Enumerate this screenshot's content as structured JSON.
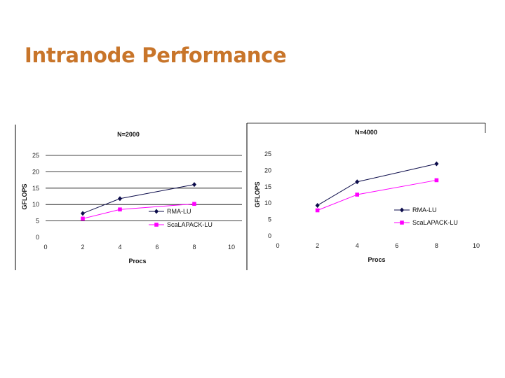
{
  "slide": {
    "title": "Intranode Performance"
  },
  "colors": {
    "title": "#c8752a",
    "rma": "#0b0b4a",
    "scalapack": "#ff00ff"
  },
  "chart_data": [
    {
      "type": "line",
      "title": "N=2000",
      "xlabel": "Procs",
      "ylabel": "GFLOPS",
      "xlim": [
        0,
        10
      ],
      "ylim": [
        0,
        25
      ],
      "xticks": [
        0,
        2,
        4,
        6,
        8,
        10
      ],
      "yticks": [
        0,
        5,
        10,
        15,
        20,
        25
      ],
      "grid": true,
      "legend_position": "right",
      "series": [
        {
          "name": "RMA-LU",
          "marker": "diamond",
          "x": [
            2,
            4,
            8
          ],
          "y": [
            7.3,
            11.8,
            16.1
          ]
        },
        {
          "name": "ScaLAPACK-LU",
          "marker": "square",
          "x": [
            2,
            4,
            8
          ],
          "y": [
            5.7,
            8.5,
            10.2
          ]
        }
      ]
    },
    {
      "type": "line",
      "title": "N=4000",
      "xlabel": "Procs",
      "ylabel": "GFLOPS",
      "xlim": [
        0,
        10
      ],
      "ylim": [
        0,
        25
      ],
      "xticks": [
        0,
        2,
        4,
        6,
        8,
        10
      ],
      "yticks": [
        0,
        5,
        10,
        15,
        20,
        25
      ],
      "grid": false,
      "legend_position": "right",
      "series": [
        {
          "name": "RMA-LU",
          "marker": "diamond",
          "x": [
            2,
            4,
            8
          ],
          "y": [
            9.3,
            16.5,
            22
          ]
        },
        {
          "name": "ScaLAPACK-LU",
          "marker": "square",
          "x": [
            2,
            4,
            8
          ],
          "y": [
            7.8,
            12.6,
            17
          ]
        }
      ]
    }
  ]
}
